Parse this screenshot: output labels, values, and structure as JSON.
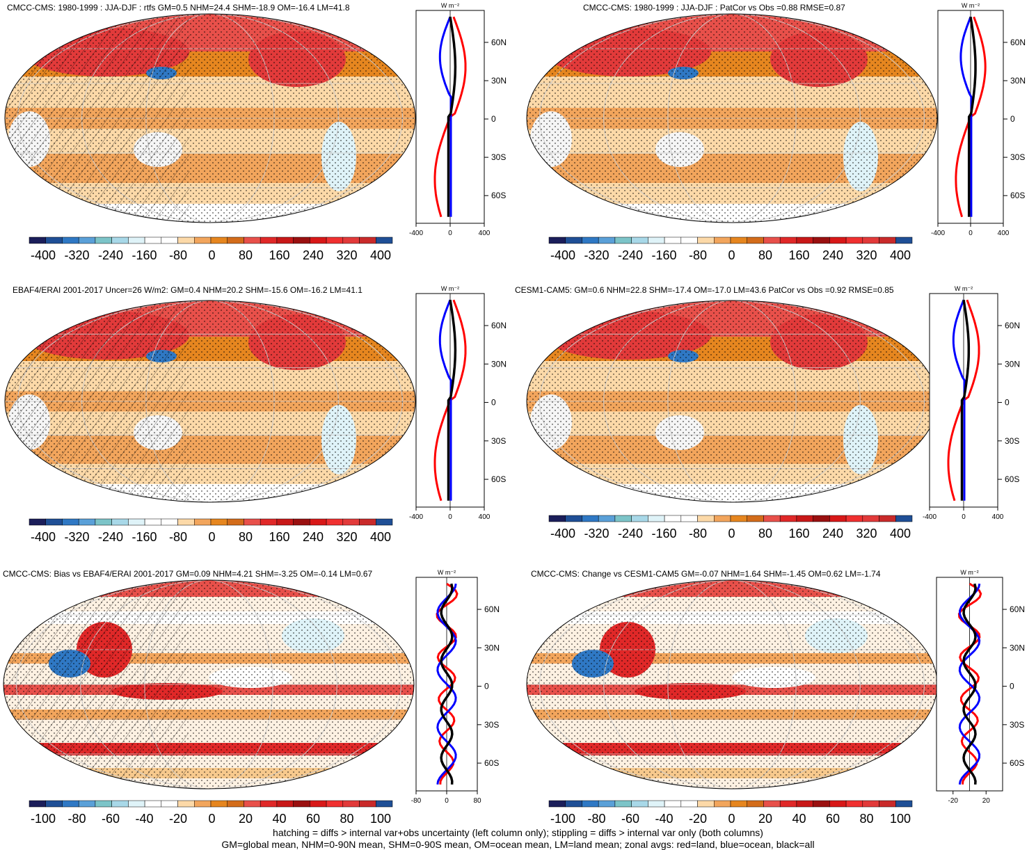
{
  "panels": [
    {
      "title": "CMCC-CMS: 1980-1999 : JJA-DJF : rtfs GM=0.5 NHM=24.4 SHM=-18.9 OM=-16.4 LM=41.8",
      "hatch": true,
      "scale": "full",
      "diff": false
    },
    {
      "title": "CMCC-CMS: 1980-1999 : JJA-DJF : PatCor vs Obs =0.88 RMSE=0.87",
      "hatch": false,
      "scale": "full",
      "diff": false
    },
    {
      "title": "EBAF4/ERAI 2001-2017 Uncer=26 W/m2: GM=0.4 NHM=20.2 SHM=-15.6 OM=-16.2 LM=41.1",
      "hatch": true,
      "scale": "full",
      "diff": false
    },
    {
      "title": "CESM1-CAM5: GM=0.6 NHM=22.8 SHM=-17.4 OM=-17.0 LM=43.6 PatCor vs Obs =0.92 RMSE=0.85",
      "hatch": false,
      "scale": "full",
      "diff": false
    },
    {
      "title": "CMCC-CMS: Bias vs EBAF4/ERAI 2001-2017 GM=0.09 NHM=4.21 SHM=-3.25 OM=-0.14 LM=0.67",
      "hatch": true,
      "scale": "diff",
      "diff": true
    },
    {
      "title": "CMCC-CMS: Change vs CESM1-CAM5 GM=-0.07 NHM=1.64 SHM=-1.45 OM=0.62 LM=-1.74",
      "hatch": false,
      "scale": "diff",
      "diff": true
    }
  ],
  "zonal": {
    "units": "W m⁻²",
    "lat_ticks": [
      "60N",
      "30N",
      "0",
      "30S",
      "60S"
    ],
    "full_x_ticks": [
      "-400",
      "0",
      "400"
    ],
    "bias_x_ticks": [
      "-80",
      "0",
      "80"
    ],
    "change_x_ticks": [
      "-20",
      "20"
    ]
  },
  "colorbars": {
    "full_labels": [
      "-400",
      "-320",
      "-240",
      "-160",
      "-80",
      "0",
      "80",
      "160",
      "240",
      "320",
      "400"
    ],
    "diff_labels": [
      "-100",
      "-80",
      "-60",
      "-40",
      "-20",
      "0",
      "20",
      "40",
      "60",
      "80",
      "100"
    ],
    "colors": [
      "#1b1e5a",
      "#1f4f96",
      "#2f78c4",
      "#5aa0d8",
      "#7cc4c8",
      "#a8d8e8",
      "#dff3f8",
      "#ffffff",
      "#ffffff",
      "#fcd9a8",
      "#f2a55c",
      "#e6861f",
      "#d36c1a",
      "#e8504a",
      "#e02828",
      "#c81818",
      "#9a1010",
      "#d81818",
      "#f03030",
      "#e23a3a",
      "#c92a2a",
      "#1f4f96"
    ],
    "series_colors": {
      "land": "#ff0000",
      "ocean": "#0000ff",
      "all": "#000000"
    }
  },
  "footer": {
    "line1": "hatching = diffs > internal var+obs uncertainty (left column only); stippling = diffs > internal var only (both columns)",
    "line2": "GM=global mean, NHM=0-90N mean, SHM=0-90S mean, OM=ocean mean, LM=land mean; zonal avgs: red=land, blue=ocean, black=all"
  }
}
